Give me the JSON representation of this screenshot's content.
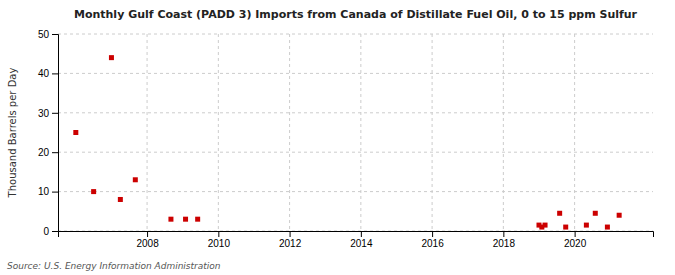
{
  "chart_data": {
    "type": "scatter",
    "title": "Monthly Gulf Coast (PADD 3) Imports from Canada of Distillate Fuel Oil, 0 to 15 ppm Sulfur",
    "ylabel": "Thousand Barrels per Day",
    "annotations": [
      "Source: U.S. Energy Information Administration"
    ],
    "x": [
      2006.0,
      2006.5,
      2007.0,
      2007.25,
      2007.67,
      2008.67,
      2009.08,
      2009.42,
      2019.0,
      2019.08,
      2019.17,
      2019.58,
      2019.75,
      2020.33,
      2020.58,
      2020.92,
      2021.25
    ],
    "values": [
      25.0,
      10.0,
      44.0,
      8.0,
      13.0,
      3.0,
      3.0,
      3.0,
      1.5,
      1.0,
      1.5,
      4.5,
      1.0,
      1.5,
      4.5,
      1.0,
      4.0
    ],
    "color": "#cc0000",
    "marker": "square",
    "xlim": [
      2005.5,
      2022.2
    ],
    "ylim": [
      0,
      50
    ],
    "xticks": [
      2008,
      2010,
      2012,
      2014,
      2016,
      2018,
      2020
    ],
    "yticks": [
      0,
      10,
      20,
      30,
      40,
      50
    ],
    "grid": true
  }
}
